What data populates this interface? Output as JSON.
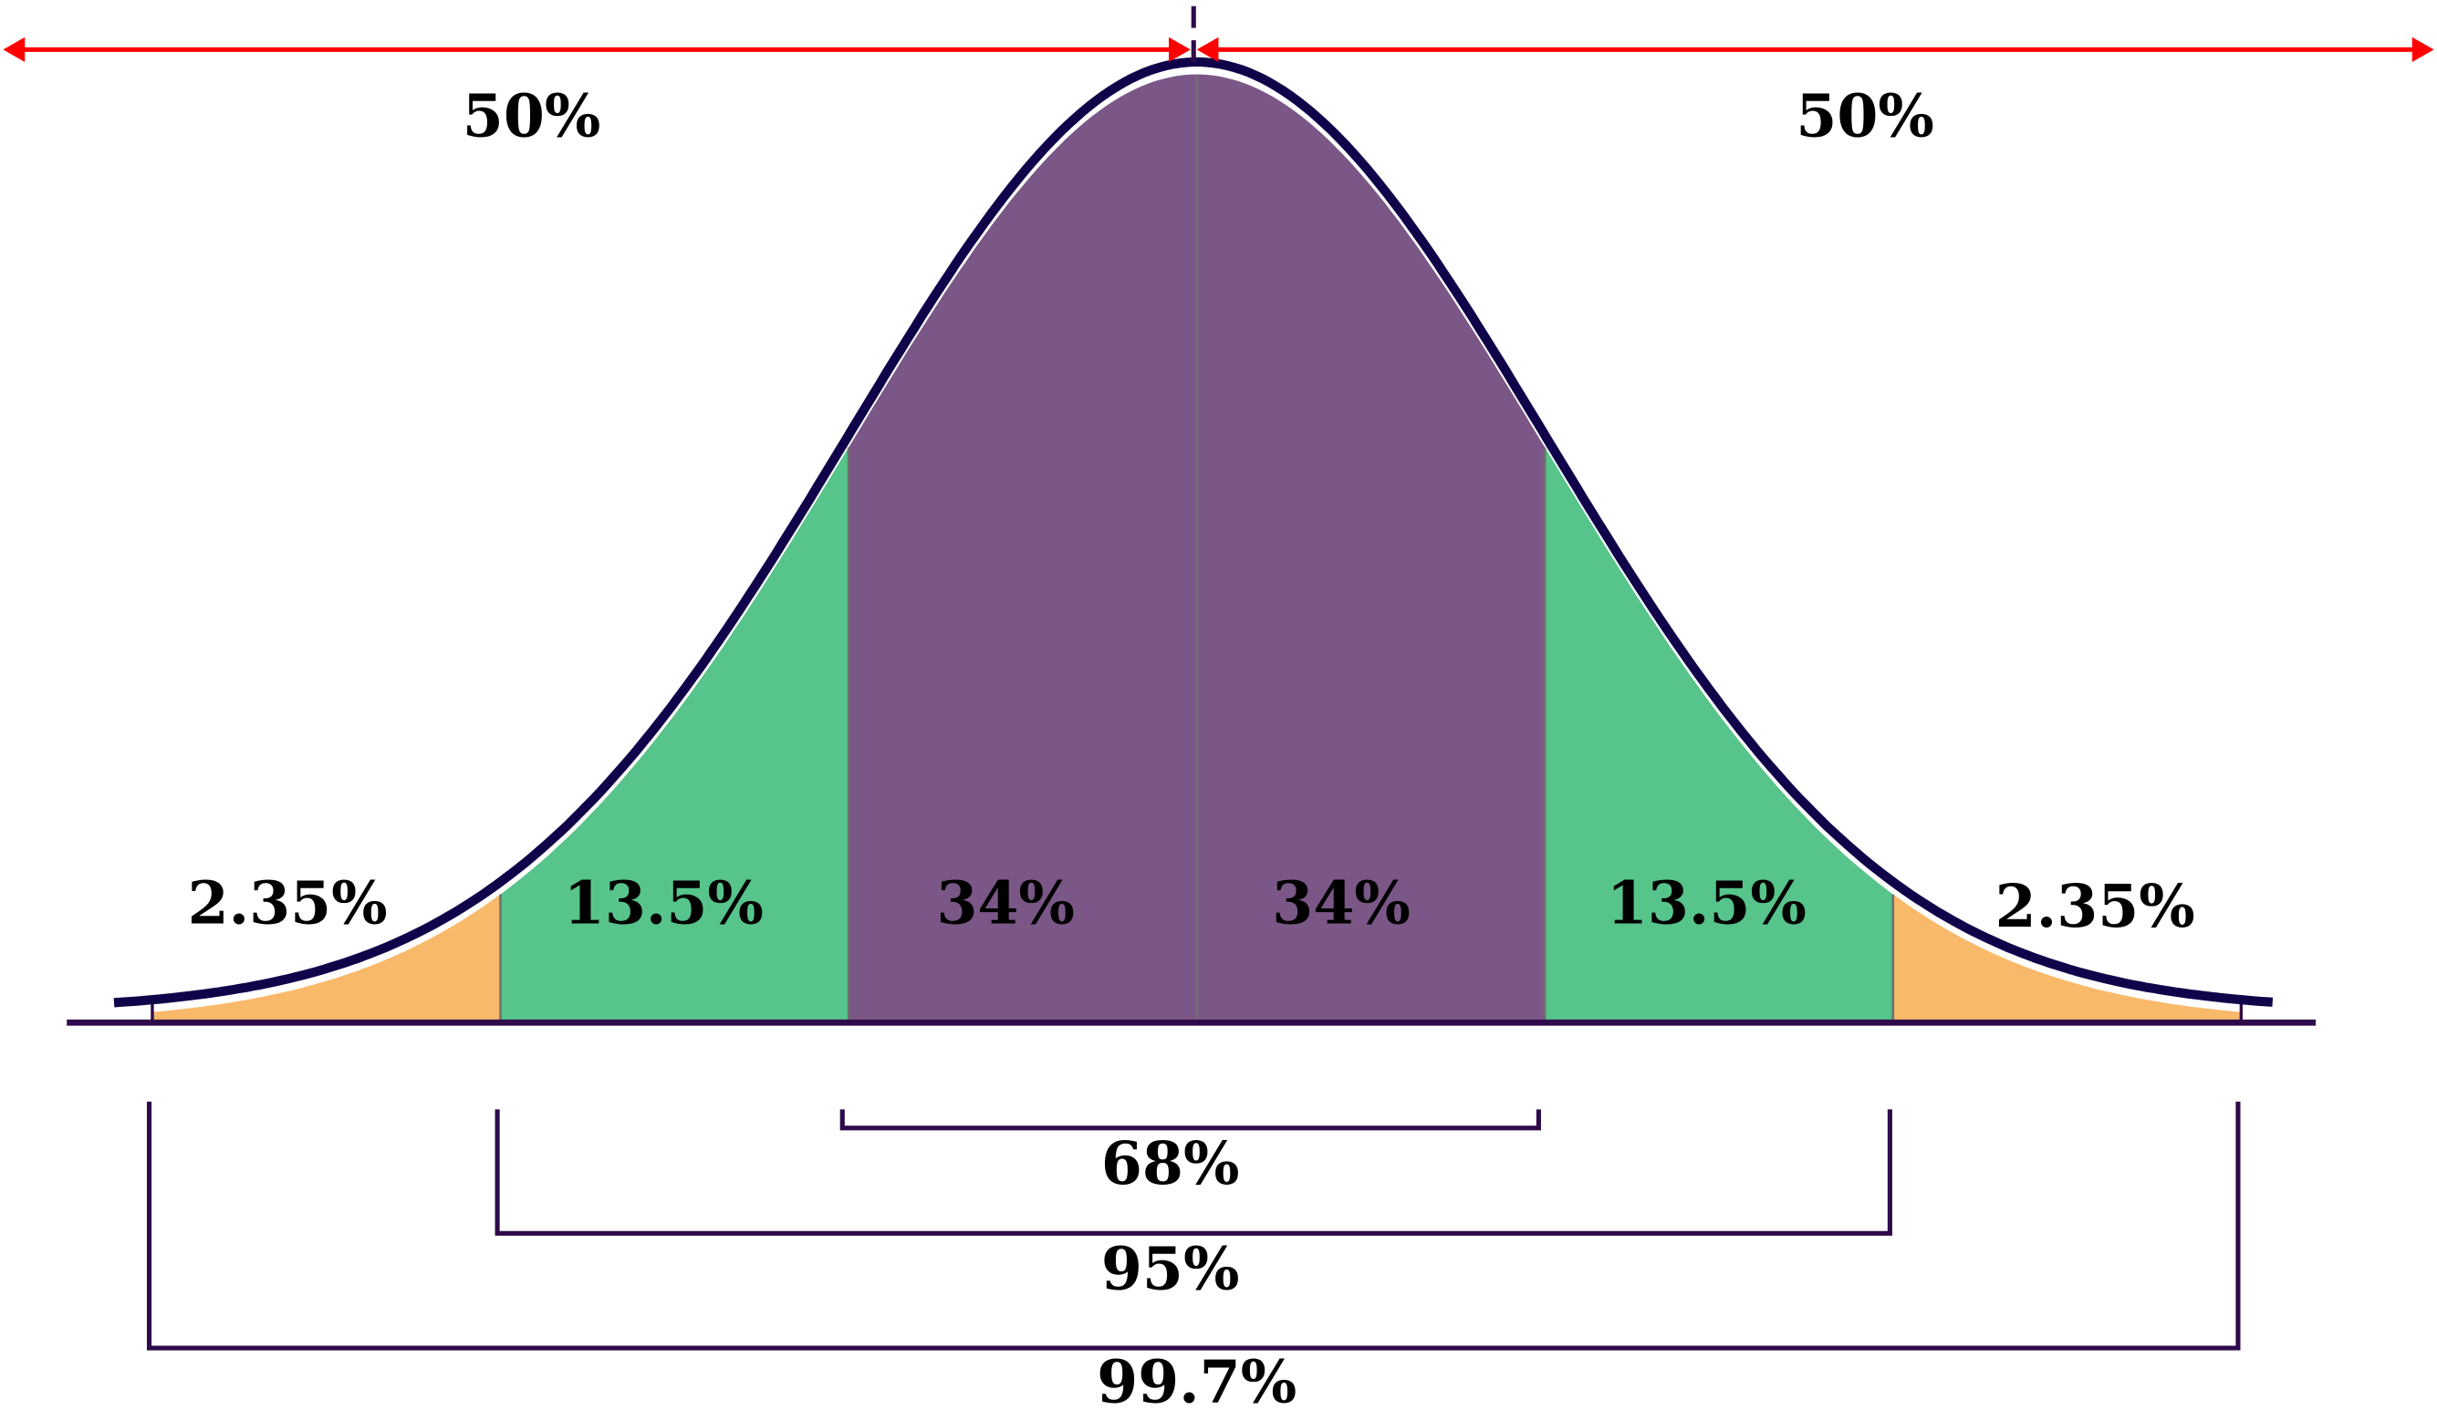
{
  "chart_data": {
    "type": "area",
    "distribution": "normal",
    "mean": 0,
    "sd": 1,
    "regions": [
      {
        "from": -3,
        "to": -2,
        "label": "2.35%",
        "color": "#f8b96a"
      },
      {
        "from": -2,
        "to": -1,
        "label": "13.5%",
        "color": "#57c48b"
      },
      {
        "from": -1,
        "to": 0,
        "label": "34%",
        "color": "#7a5786"
      },
      {
        "from": 0,
        "to": 1,
        "label": "34%",
        "color": "#7a5786"
      },
      {
        "from": 1,
        "to": 2,
        "label": "13.5%",
        "color": "#57c48b"
      },
      {
        "from": 2,
        "to": 3,
        "label": "2.35%",
        "color": "#f8b96a"
      }
    ],
    "halves": [
      {
        "side": "left",
        "label": "50%"
      },
      {
        "side": "right",
        "label": "50%"
      }
    ],
    "intervals": [
      {
        "from": -1,
        "to": 1,
        "label": "68%"
      },
      {
        "from": -2,
        "to": 2,
        "label": "95%"
      },
      {
        "from": -3,
        "to": 3,
        "label": "99.7%"
      }
    ],
    "colors": {
      "curve": "#10034a",
      "arrow": "#ff0000",
      "bracket": "#2e0a4a",
      "divider": "#707070"
    }
  }
}
